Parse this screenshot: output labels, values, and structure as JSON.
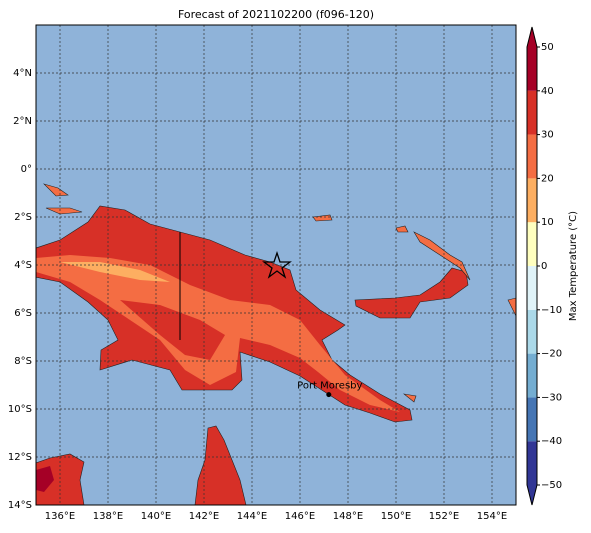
{
  "map": {
    "title": "Forecast of 2021102200 (f096-120)",
    "lonlim": [
      135,
      155
    ],
    "latlim": [
      -14,
      6
    ],
    "lonticks": [
      {
        "value": 136,
        "label": "136°E"
      },
      {
        "value": 138,
        "label": "138°E"
      },
      {
        "value": 140,
        "label": "140°E"
      },
      {
        "value": 142,
        "label": "142°E"
      },
      {
        "value": 144,
        "label": "144°E"
      },
      {
        "value": 146,
        "label": "146°E"
      },
      {
        "value": 148,
        "label": "148°E"
      },
      {
        "value": 150,
        "label": "150°E"
      },
      {
        "value": 152,
        "label": "152°E"
      },
      {
        "value": 154,
        "label": "154°E"
      }
    ],
    "latticks": [
      {
        "value": 4,
        "label": "4°N"
      },
      {
        "value": 2,
        "label": "2°N"
      },
      {
        "value": 0,
        "label": "0°"
      },
      {
        "value": -2,
        "label": "2°S"
      },
      {
        "value": -4,
        "label": "4°S"
      },
      {
        "value": -6,
        "label": "6°S"
      },
      {
        "value": -8,
        "label": "8°S"
      },
      {
        "value": -10,
        "label": "10°S"
      },
      {
        "value": -12,
        "label": "12°S"
      },
      {
        "value": -14,
        "label": "14°S"
      }
    ],
    "city": {
      "name": "Port Moresby",
      "lon": 147.2,
      "lat": -9.4
    },
    "colorbar": {
      "label": "Max Temperature (°C)",
      "lim": [
        -50,
        50
      ],
      "ticks": [
        {
          "value": -50,
          "label": "−50"
        },
        {
          "value": -40,
          "label": "−40"
        },
        {
          "value": -30,
          "label": "−30"
        },
        {
          "value": -20,
          "label": "−20"
        },
        {
          "value": -10,
          "label": "−10"
        },
        0,
        10,
        20,
        30,
        40,
        50
      ],
      "colors": [
        "#313695",
        "#4575b4",
        "#74add1",
        "#abd9e9",
        "#e0f3f8",
        "#ffffbf",
        "#fdae61",
        "#f46d43",
        "#d73027",
        "#a50026"
      ]
    }
  }
}
